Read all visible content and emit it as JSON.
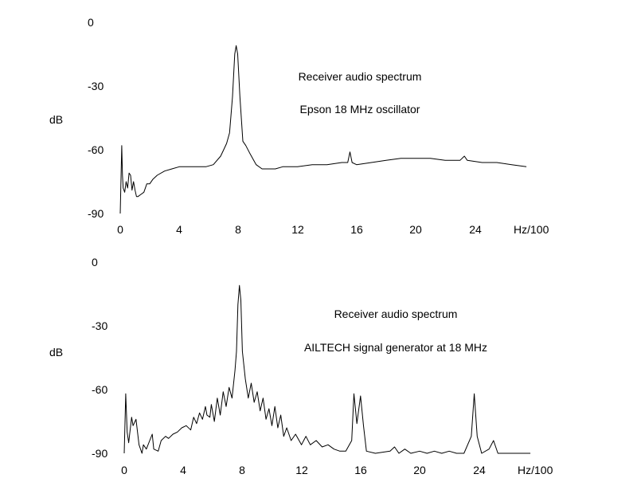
{
  "chart_data": [
    {
      "type": "line",
      "title": "Receiver audio spectrum",
      "subtitle": "Epson 18 MHz oscillator",
      "ylabel": "dB",
      "xlabel": "Hz/100",
      "xlim": [
        0,
        27.5
      ],
      "ylim": [
        -90,
        0
      ],
      "x_ticks": [
        "0",
        "4",
        "8",
        "12",
        "16",
        "20",
        "24"
      ],
      "y_ticks": [
        "0",
        "-30",
        "-60",
        "-90"
      ],
      "grid": false,
      "points": [
        [
          0,
          -90
        ],
        [
          0.1,
          -58
        ],
        [
          0.15,
          -72
        ],
        [
          0.2,
          -78
        ],
        [
          0.3,
          -80
        ],
        [
          0.4,
          -75
        ],
        [
          0.5,
          -78
        ],
        [
          0.6,
          -71
        ],
        [
          0.7,
          -72
        ],
        [
          0.8,
          -79
        ],
        [
          0.9,
          -75
        ],
        [
          1.0,
          -79
        ],
        [
          1.1,
          -82
        ],
        [
          1.2,
          -82
        ],
        [
          1.4,
          -81
        ],
        [
          1.6,
          -80
        ],
        [
          1.8,
          -76
        ],
        [
          2.0,
          -76
        ],
        [
          2.2,
          -74
        ],
        [
          2.5,
          -72
        ],
        [
          3.0,
          -70
        ],
        [
          3.5,
          -69
        ],
        [
          4.0,
          -68
        ],
        [
          5.0,
          -68
        ],
        [
          5.8,
          -68
        ],
        [
          6.3,
          -67
        ],
        [
          6.8,
          -63
        ],
        [
          7.0,
          -60
        ],
        [
          7.2,
          -57
        ],
        [
          7.4,
          -52
        ],
        [
          7.6,
          -35
        ],
        [
          7.75,
          -15
        ],
        [
          7.85,
          -11
        ],
        [
          7.95,
          -15
        ],
        [
          8.1,
          -35
        ],
        [
          8.3,
          -56
        ],
        [
          8.5,
          -58
        ],
        [
          8.8,
          -62
        ],
        [
          9.2,
          -67
        ],
        [
          9.6,
          -69
        ],
        [
          10.0,
          -69
        ],
        [
          10.5,
          -69
        ],
        [
          11.0,
          -68
        ],
        [
          12.0,
          -68
        ],
        [
          13.0,
          -67
        ],
        [
          14.0,
          -67
        ],
        [
          15.0,
          -66
        ],
        [
          15.4,
          -66
        ],
        [
          15.55,
          -61
        ],
        [
          15.7,
          -66
        ],
        [
          16.0,
          -67
        ],
        [
          17.0,
          -66
        ],
        [
          18.0,
          -65
        ],
        [
          19.0,
          -64
        ],
        [
          20.0,
          -64
        ],
        [
          21.0,
          -64
        ],
        [
          22.0,
          -65
        ],
        [
          23.0,
          -65
        ],
        [
          23.3,
          -63
        ],
        [
          23.5,
          -65
        ],
        [
          24.5,
          -66
        ],
        [
          25.5,
          -66
        ],
        [
          26.5,
          -67
        ],
        [
          27.5,
          -68
        ]
      ]
    },
    {
      "type": "line",
      "title": "Receiver audio spectrum",
      "subtitle": "AILTECH signal generator at 18 MHz",
      "ylabel": "dB",
      "xlabel": "Hz/100",
      "xlim": [
        0,
        27.5
      ],
      "ylim": [
        -90,
        0
      ],
      "x_ticks": [
        "0",
        "4",
        "8",
        "12",
        "16",
        "20",
        "24"
      ],
      "y_ticks": [
        "0",
        "-30",
        "-60",
        "-90"
      ],
      "grid": false,
      "points": [
        [
          0,
          -90
        ],
        [
          0.1,
          -62
        ],
        [
          0.2,
          -80
        ],
        [
          0.3,
          -85
        ],
        [
          0.5,
          -73
        ],
        [
          0.6,
          -77
        ],
        [
          0.8,
          -74
        ],
        [
          1.0,
          -86
        ],
        [
          1.2,
          -90
        ],
        [
          1.3,
          -86
        ],
        [
          1.5,
          -88
        ],
        [
          1.9,
          -81
        ],
        [
          2.0,
          -88
        ],
        [
          2.3,
          -89
        ],
        [
          2.5,
          -84
        ],
        [
          2.8,
          -82
        ],
        [
          3.0,
          -83
        ],
        [
          3.3,
          -81
        ],
        [
          3.6,
          -80
        ],
        [
          3.9,
          -78
        ],
        [
          4.2,
          -77
        ],
        [
          4.5,
          -79
        ],
        [
          4.7,
          -73
        ],
        [
          4.9,
          -76
        ],
        [
          5.1,
          -71
        ],
        [
          5.3,
          -74
        ],
        [
          5.5,
          -68
        ],
        [
          5.6,
          -72
        ],
        [
          5.8,
          -73
        ],
        [
          5.9,
          -67
        ],
        [
          6.1,
          -75
        ],
        [
          6.3,
          -64
        ],
        [
          6.5,
          -72
        ],
        [
          6.7,
          -61
        ],
        [
          6.9,
          -68
        ],
        [
          7.1,
          -59
        ],
        [
          7.3,
          -64
        ],
        [
          7.5,
          -51
        ],
        [
          7.6,
          -42
        ],
        [
          7.7,
          -20
        ],
        [
          7.8,
          -11
        ],
        [
          7.9,
          -18
        ],
        [
          8.0,
          -42
        ],
        [
          8.2,
          -55
        ],
        [
          8.4,
          -64
        ],
        [
          8.6,
          -57
        ],
        [
          8.8,
          -66
        ],
        [
          9.0,
          -61
        ],
        [
          9.2,
          -70
        ],
        [
          9.4,
          -64
        ],
        [
          9.6,
          -74
        ],
        [
          9.8,
          -69
        ],
        [
          10.0,
          -77
        ],
        [
          10.2,
          -68
        ],
        [
          10.4,
          -78
        ],
        [
          10.6,
          -72
        ],
        [
          10.8,
          -82
        ],
        [
          11.0,
          -78
        ],
        [
          11.3,
          -84
        ],
        [
          11.6,
          -81
        ],
        [
          12.0,
          -86
        ],
        [
          12.3,
          -82
        ],
        [
          12.6,
          -86
        ],
        [
          13.0,
          -84
        ],
        [
          13.4,
          -87
        ],
        [
          13.8,
          -86
        ],
        [
          14.2,
          -88
        ],
        [
          14.6,
          -89
        ],
        [
          15.0,
          -89
        ],
        [
          15.4,
          -84
        ],
        [
          15.55,
          -62
        ],
        [
          15.75,
          -76
        ],
        [
          16.0,
          -63
        ],
        [
          16.2,
          -77
        ],
        [
          16.4,
          -89
        ],
        [
          17.0,
          -90
        ],
        [
          18.0,
          -89
        ],
        [
          18.3,
          -87
        ],
        [
          18.6,
          -90
        ],
        [
          19.0,
          -88
        ],
        [
          19.4,
          -90
        ],
        [
          20.0,
          -89
        ],
        [
          20.5,
          -90
        ],
        [
          21.0,
          -89
        ],
        [
          21.5,
          -90
        ],
        [
          22.0,
          -89
        ],
        [
          22.5,
          -90
        ],
        [
          23.0,
          -90
        ],
        [
          23.5,
          -82
        ],
        [
          23.7,
          -62
        ],
        [
          23.9,
          -82
        ],
        [
          24.2,
          -90
        ],
        [
          24.7,
          -88
        ],
        [
          25.0,
          -84
        ],
        [
          25.3,
          -90
        ],
        [
          26.0,
          -90
        ],
        [
          27.5,
          -90
        ]
      ]
    }
  ]
}
